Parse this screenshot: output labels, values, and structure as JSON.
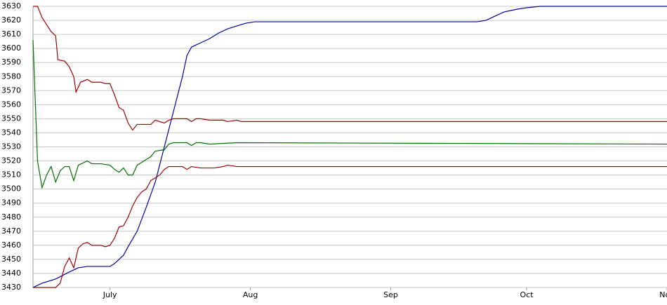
{
  "chart_data": {
    "type": "line",
    "xlim": [
      0,
      140
    ],
    "xticks": [
      {
        "value": 17,
        "label": "July"
      },
      {
        "value": 48,
        "label": "Aug"
      },
      {
        "value": 79,
        "label": "Sep"
      },
      {
        "value": 109,
        "label": "Oct"
      },
      {
        "value": 140,
        "label": "Nov"
      }
    ],
    "ylim": [
      3430,
      3630
    ],
    "yticks": [
      3430,
      3440,
      3450,
      3460,
      3470,
      3480,
      3490,
      3500,
      3510,
      3520,
      3530,
      3540,
      3550,
      3560,
      3570,
      3580,
      3590,
      3600,
      3610,
      3620,
      3630
    ],
    "grid": true,
    "series": [
      {
        "color": "#0000a0",
        "x": [
          0,
          2,
          5,
          8,
          10,
          12,
          17,
          18,
          20,
          21,
          23,
          25,
          27,
          29,
          31,
          33,
          34,
          35,
          37,
          39,
          41,
          43,
          45,
          47,
          49,
          98,
          100,
          102,
          104,
          107,
          109,
          112,
          140
        ],
        "values": [
          3430,
          3433,
          3436,
          3441,
          3444,
          3445,
          3445,
          3447,
          3453,
          3459,
          3470,
          3487,
          3505,
          3530,
          3555,
          3580,
          3595,
          3601,
          3604,
          3607,
          3611,
          3614,
          3616,
          3618,
          3619,
          3619,
          3620,
          3623,
          3626,
          3628,
          3629,
          3630,
          3630
        ]
      },
      {
        "color": "#a00000",
        "x": [
          0,
          1,
          2,
          3,
          4,
          5,
          5.5,
          7,
          8,
          9,
          9.5,
          10.5,
          12,
          13,
          15,
          16,
          17,
          18,
          19,
          20,
          21,
          22,
          23,
          25,
          26,
          27,
          29,
          30,
          31,
          34,
          35,
          36,
          37,
          39,
          42,
          43,
          45,
          46,
          140
        ],
        "values": [
          3630,
          3630,
          3622,
          3617,
          3612,
          3609,
          3592,
          3591,
          3587,
          3580,
          3569,
          3576,
          3578,
          3576,
          3576,
          3575,
          3575,
          3567,
          3558,
          3556,
          3547,
          3542,
          3546,
          3546,
          3546,
          3549,
          3547,
          3549,
          3550,
          3550,
          3548,
          3550,
          3550,
          3549,
          3549,
          3548,
          3549,
          3548,
          3548
        ]
      },
      {
        "color": "#007000",
        "x": [
          0,
          1,
          2,
          3,
          4,
          5,
          6,
          7,
          8,
          9,
          10,
          12,
          13,
          15,
          17,
          18,
          19,
          20,
          21,
          22,
          23,
          25,
          26,
          27,
          29,
          30,
          31,
          34,
          35,
          36,
          37,
          39,
          45,
          140
        ],
        "values": [
          3606,
          3520,
          3501,
          3510,
          3516,
          3505,
          3513,
          3516,
          3516,
          3506,
          3517,
          3520,
          3518,
          3518,
          3517,
          3514,
          3512,
          3515,
          3510,
          3510,
          3517,
          3521,
          3523,
          3527,
          3528,
          3532,
          3533,
          3533,
          3531,
          3533,
          3533,
          3532,
          3533,
          3532
        ]
      },
      {
        "color": "#a00000",
        "x": [
          0,
          5,
          6,
          7,
          8,
          9,
          10,
          11,
          12,
          13,
          15,
          16,
          17,
          18,
          19,
          20,
          21,
          22,
          23,
          24,
          25,
          26,
          27,
          28,
          29,
          30,
          33,
          34,
          35,
          37,
          40,
          42,
          43,
          45,
          140
        ],
        "values": [
          3430,
          3430,
          3433,
          3445,
          3451,
          3444,
          3458,
          3461,
          3462,
          3460,
          3460,
          3459,
          3460,
          3465,
          3473,
          3474,
          3480,
          3488,
          3494,
          3498,
          3500,
          3506,
          3508,
          3510,
          3514,
          3516,
          3516,
          3514,
          3516,
          3515,
          3515,
          3516,
          3517,
          3516,
          3516
        ]
      }
    ]
  }
}
